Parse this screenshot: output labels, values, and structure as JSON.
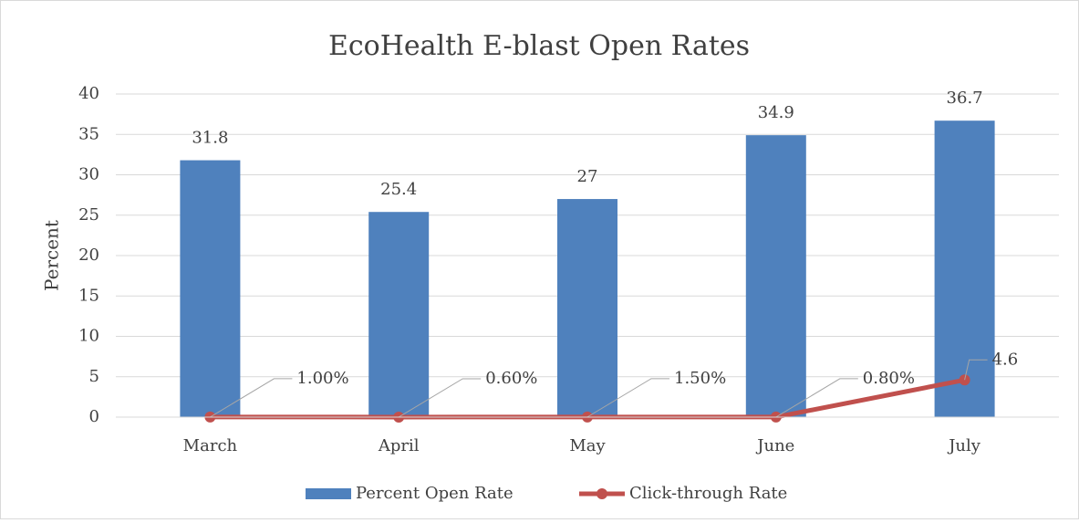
{
  "chart_data": {
    "type": "bar",
    "title": "EcoHealth E-blast Open Rates",
    "y_label": "Percent",
    "categories": [
      "March",
      "April",
      "May",
      "June",
      "July"
    ],
    "series": [
      {
        "name": "Percent Open Rate",
        "type": "bar",
        "color": "#4f81bd",
        "values": [
          31.8,
          25.4,
          27,
          34.9,
          36.7
        ]
      },
      {
        "name": "Click-through Rate",
        "type": "line",
        "color": "#c0504d",
        "values": [
          0.01,
          0.006,
          0.015,
          0.008,
          4.6
        ],
        "value_labels": [
          "1.00%",
          "0.60%",
          "1.50%",
          "0.80%",
          "4.6"
        ]
      }
    ],
    "ylim": [
      0,
      40
    ],
    "yticks": [
      0,
      5,
      10,
      15,
      20,
      25,
      30,
      35,
      40
    ],
    "grid": true,
    "legend": "bottom"
  }
}
